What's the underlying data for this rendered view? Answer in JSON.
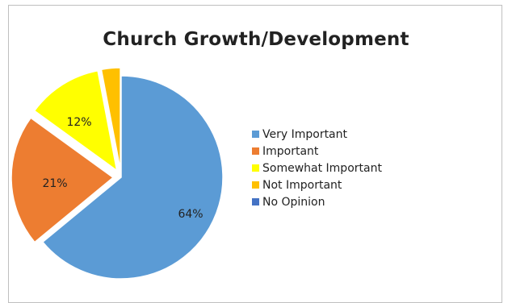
{
  "chart_data": {
    "type": "pie",
    "title": "Church Growth/Development",
    "categories": [
      "Very Important",
      "Important",
      "Somewhat Important",
      "Not Important",
      "No Opinion"
    ],
    "values": [
      64,
      21,
      12,
      3,
      0
    ],
    "data_labels": [
      "64%",
      "21%",
      "12%",
      "",
      ""
    ],
    "colors": [
      "#5b9bd5",
      "#ed7d31",
      "#ffff00",
      "#ffc000",
      "#4472c4"
    ],
    "legend_position": "right",
    "exploded_slices": [
      "Important",
      "Somewhat Important",
      "Not Important"
    ]
  }
}
